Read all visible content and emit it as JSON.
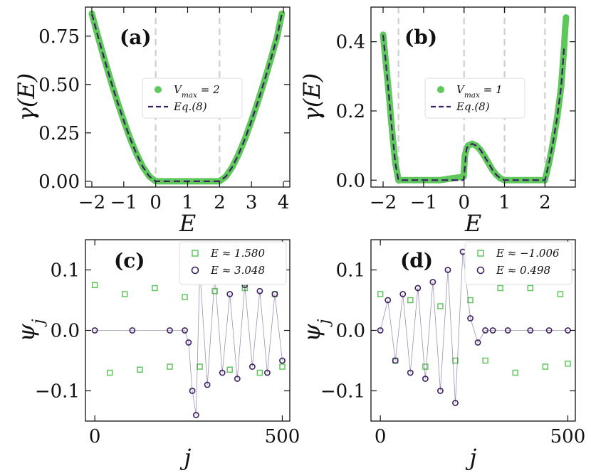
{
  "colors": {
    "green": "#5ec85a",
    "purple": "#3d1f63",
    "dash_gray": "#cfcfcf",
    "axis": "#111111"
  },
  "chart_data": [
    {
      "panel": "a",
      "panel_label": "(a)",
      "type": "scatter",
      "xlabel": "E",
      "ylabel": "γ(E)",
      "xlim": [
        -2.2,
        4.2
      ],
      "ylim": [
        -0.03,
        0.9
      ],
      "xticks": [
        -2,
        -1,
        0,
        1,
        2,
        3,
        4
      ],
      "xtick_labels": [
        "−2",
        "−1",
        "0",
        "1",
        "2",
        "3",
        "4"
      ],
      "yticks": [
        0.0,
        0.25,
        0.5,
        0.75
      ],
      "ytick_labels": [
        "0.00",
        "0.25",
        "0.50",
        "0.75"
      ],
      "vlines": [
        0,
        2
      ],
      "legend": {
        "position": "center-right",
        "entries": [
          {
            "label": "V_max = 2",
            "style": "marker"
          },
          {
            "label": "Eq.(8)",
            "style": "dashed"
          }
        ]
      },
      "series": [
        {
          "name": "V_max = 2",
          "style": "marker",
          "color": "#5ec85a",
          "x": [
            -2.0,
            -1.8,
            -1.6,
            -1.4,
            -1.2,
            -1.0,
            -0.8,
            -0.6,
            -0.4,
            -0.2,
            0.0,
            0.5,
            1.0,
            1.5,
            2.0,
            2.2,
            2.4,
            2.6,
            2.8,
            3.0,
            3.2,
            3.4,
            3.6,
            3.8,
            3.95
          ],
          "y": [
            0.866,
            0.744,
            0.627,
            0.516,
            0.411,
            0.313,
            0.221,
            0.141,
            0.074,
            0.025,
            0.0,
            0.0,
            0.0,
            0.0,
            0.0,
            0.025,
            0.074,
            0.141,
            0.221,
            0.313,
            0.411,
            0.516,
            0.627,
            0.744,
            0.866
          ]
        },
        {
          "name": "Eq.(8)",
          "style": "dashed",
          "color": "#3d1f63",
          "x": [
            -2.0,
            -1.8,
            -1.6,
            -1.4,
            -1.2,
            -1.0,
            -0.8,
            -0.6,
            -0.4,
            -0.2,
            0.0,
            0.5,
            1.0,
            1.5,
            2.0,
            2.2,
            2.4,
            2.6,
            2.8,
            3.0,
            3.2,
            3.4,
            3.6,
            3.8,
            3.95
          ],
          "y": [
            0.866,
            0.744,
            0.627,
            0.516,
            0.411,
            0.313,
            0.221,
            0.141,
            0.074,
            0.025,
            0.0,
            0.0,
            0.0,
            0.0,
            0.0,
            0.025,
            0.074,
            0.141,
            0.221,
            0.313,
            0.411,
            0.516,
            0.627,
            0.744,
            0.866
          ]
        }
      ]
    },
    {
      "panel": "b",
      "panel_label": "(b)",
      "type": "scatter",
      "xlabel": "E",
      "ylabel": "γ(E)",
      "xlim": [
        -2.3,
        2.75
      ],
      "ylim": [
        -0.02,
        0.5
      ],
      "xticks": [
        -2,
        -1,
        0,
        1,
        2
      ],
      "xtick_labels": [
        "−2",
        "−1",
        "0",
        "1",
        "2"
      ],
      "yticks": [
        0.0,
        0.2,
        0.4
      ],
      "ytick_labels": [
        "0.0",
        "0.2",
        "0.4"
      ],
      "vlines": [
        -1.62,
        0,
        1,
        2
      ],
      "legend": {
        "position": "center-right",
        "entries": [
          {
            "label": "V_max = 1",
            "style": "marker"
          },
          {
            "label": "Eq.(8)",
            "style": "dashed"
          }
        ]
      },
      "series": [
        {
          "name": "V_max = 1",
          "style": "marker",
          "color": "#5ec85a",
          "x": [
            -2.0,
            -1.95,
            -1.9,
            -1.85,
            -1.8,
            -1.75,
            -1.7,
            -1.62,
            -1.2,
            -0.6,
            -0.01,
            0.02,
            0.06,
            0.1,
            0.2,
            0.3,
            0.4,
            0.5,
            0.6,
            0.7,
            0.8,
            0.9,
            1.0,
            1.5,
            2.0,
            2.1,
            2.2,
            2.3,
            2.4,
            2.47,
            2.5,
            2.52
          ],
          "y": [
            0.42,
            0.36,
            0.3,
            0.24,
            0.17,
            0.11,
            0.05,
            0.0,
            0.0,
            0.0,
            0.01,
            0.07,
            0.09,
            0.1,
            0.105,
            0.1,
            0.088,
            0.07,
            0.05,
            0.03,
            0.015,
            0.005,
            0.0,
            0.0,
            0.0,
            0.05,
            0.11,
            0.18,
            0.27,
            0.38,
            0.44,
            0.47
          ]
        },
        {
          "name": "Eq.(8)",
          "style": "dashed",
          "color": "#3d1f63",
          "x": [
            -2.0,
            -1.9,
            -1.8,
            -1.7,
            -1.62,
            -1.2,
            -0.6,
            -0.01,
            0.06,
            0.1,
            0.2,
            0.3,
            0.4,
            0.5,
            0.6,
            0.7,
            0.8,
            0.9,
            1.0,
            1.5,
            2.0,
            2.1,
            2.2,
            2.3,
            2.4,
            2.47
          ],
          "y": [
            0.42,
            0.3,
            0.17,
            0.05,
            0.0,
            0.0,
            0.0,
            0.0,
            0.09,
            0.1,
            0.105,
            0.1,
            0.088,
            0.07,
            0.05,
            0.03,
            0.015,
            0.005,
            0.0,
            0.0,
            0.0,
            0.05,
            0.11,
            0.18,
            0.27,
            0.38
          ]
        }
      ]
    },
    {
      "panel": "c",
      "panel_label": "(c)",
      "type": "scatter",
      "xlabel": "j",
      "ylabel": "ψ_j",
      "xlim": [
        -25,
        520
      ],
      "ylim": [
        -0.15,
        0.15
      ],
      "xticks": [
        0,
        500
      ],
      "xtick_labels": [
        "0",
        "500"
      ],
      "yticks": [
        -0.1,
        0.0,
        0.1
      ],
      "ytick_labels": [
        "−0.1",
        "0.0",
        "0.1"
      ],
      "legend": {
        "position": "top-right",
        "entries": [
          {
            "label": "E ≈ 1.580",
            "style": "open-square"
          },
          {
            "label": "E ≈ 3.048",
            "style": "open-circle"
          }
        ]
      },
      "series": [
        {
          "name": "E ≈ 1.580",
          "style": "open-square",
          "color": "#5ec85a",
          "x": [
            0,
            40,
            80,
            120,
            160,
            200,
            240,
            280,
            320,
            360,
            400,
            440,
            480,
            500
          ],
          "y": [
            0.075,
            -0.07,
            0.06,
            -0.065,
            0.07,
            -0.06,
            0.055,
            -0.06,
            0.065,
            -0.065,
            0.07,
            -0.07,
            0.06,
            -0.06
          ]
        },
        {
          "name": "E ≈ 3.048",
          "style": "open-circle",
          "color": "#3d1f63",
          "x": [
            0,
            100,
            200,
            240,
            250,
            260,
            270,
            280,
            300,
            320,
            340,
            360,
            380,
            400,
            420,
            440,
            460,
            480,
            500
          ],
          "y": [
            0.0,
            0.0,
            0.0,
            0.0,
            -0.02,
            -0.1,
            -0.14,
            0.1,
            -0.09,
            0.09,
            -0.07,
            0.06,
            -0.08,
            0.075,
            -0.06,
            0.065,
            -0.07,
            0.06,
            -0.05
          ]
        }
      ]
    },
    {
      "panel": "d",
      "panel_label": "(d)",
      "type": "scatter",
      "xlabel": "j",
      "ylabel": "ψ_j",
      "xlim": [
        -25,
        520
      ],
      "ylim": [
        -0.15,
        0.15
      ],
      "xticks": [
        0,
        500
      ],
      "xtick_labels": [
        "0",
        "500"
      ],
      "yticks": [
        -0.1,
        0.0,
        0.1
      ],
      "ytick_labels": [
        "−0.1",
        "0.0",
        "0.1"
      ],
      "legend": {
        "position": "top-right",
        "entries": [
          {
            "label": "E ≈ −1.006",
            "style": "open-square"
          },
          {
            "label": "E ≈ 0.498",
            "style": "open-circle"
          }
        ]
      },
      "series": [
        {
          "name": "E ≈ −1.006",
          "style": "open-square",
          "color": "#5ec85a",
          "x": [
            0,
            40,
            80,
            120,
            160,
            200,
            240,
            280,
            320,
            360,
            400,
            440,
            480,
            500
          ],
          "y": [
            0.06,
            -0.05,
            0.05,
            -0.06,
            0.04,
            -0.05,
            0.05,
            -0.05,
            0.07,
            -0.07,
            0.07,
            -0.06,
            0.06,
            -0.055
          ]
        },
        {
          "name": "E ≈ 0.498",
          "style": "open-circle",
          "color": "#3d1f63",
          "x": [
            0,
            20,
            40,
            60,
            80,
            100,
            120,
            140,
            160,
            180,
            200,
            220,
            240,
            260,
            280,
            300,
            340,
            400,
            450,
            500
          ],
          "y": [
            0.0,
            0.05,
            -0.05,
            0.06,
            -0.07,
            0.07,
            -0.08,
            0.08,
            -0.1,
            0.1,
            -0.12,
            0.13,
            0.02,
            -0.02,
            0.0,
            0.0,
            0.0,
            0.0,
            0.0,
            0.0
          ]
        }
      ]
    }
  ]
}
